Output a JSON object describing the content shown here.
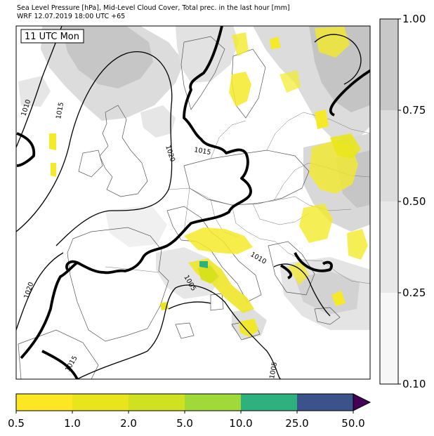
{
  "header": {
    "line1": "Sea Level Pressure [hPa], Mid-Level Cloud Cover, Total prec. in the last hour [mm]",
    "line2": "WRF 12.07.2019 18:00 UTC +65"
  },
  "valid_label": "11 UTC Mon",
  "isobar_labels": [
    "1010",
    "1015",
    "1020",
    "1015",
    "1020",
    "1005",
    "1010",
    "1005",
    "1015"
  ],
  "cloud_colorbar": {
    "ticks": [
      "1.00",
      "0.75",
      "0.50",
      "0.25",
      "0.10"
    ],
    "colors": [
      "#c8c8c8",
      "#dcdcdc",
      "#e8e8e8",
      "#f7f7f7"
    ]
  },
  "precip_colorbar": {
    "ticks": [
      "0.5",
      "1.0",
      "2.0",
      "5.0",
      "10.0",
      "25.0",
      "50.0"
    ],
    "colors": [
      "#fde725",
      "#e9e51c",
      "#cfe11f",
      "#a0da39",
      "#2db27d",
      "#3b528b",
      "#440154"
    ]
  },
  "colors": {
    "precip_light": "#f4ea2a",
    "precip_mid": "#d8e21c",
    "precip_high": "#2db27d",
    "cloud_dark": "#c4c4c4",
    "cloud_light": "#dedede"
  }
}
